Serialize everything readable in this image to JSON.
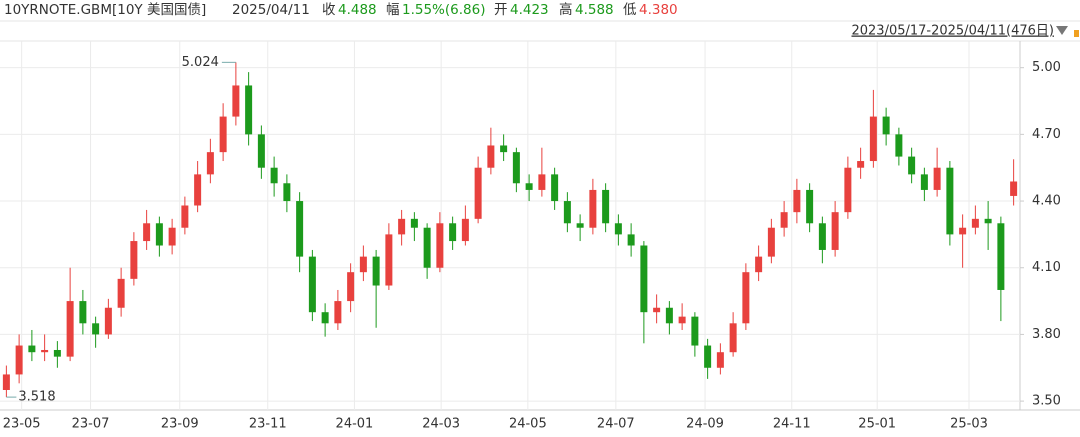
{
  "header": {
    "symbol": "10YRNOTE.GBM[10Y 美国国债]",
    "date": "2025/04/11",
    "close_label": "收",
    "close": "4.488",
    "change_label": "幅",
    "change": "1.55%(6.86)",
    "open_label": "开",
    "open": "4.423",
    "high_label": "高",
    "high": "4.588",
    "low_label": "低",
    "low": "4.380",
    "range": "2023/05/17-2025/04/11(476日)"
  },
  "chart_data": {
    "type": "candlestick",
    "up_color": "#e8413e",
    "down_color": "#1c9a1c",
    "grid": true,
    "ylim": [
      3.46,
      5.12
    ],
    "yticks": [
      {
        "value": 3.5,
        "label": "3.50"
      },
      {
        "value": 3.8,
        "label": "3.80"
      },
      {
        "value": 4.1,
        "label": "4.10"
      },
      {
        "value": 4.4,
        "label": "4.40"
      },
      {
        "value": 4.7,
        "label": "4.70"
      },
      {
        "value": 5.0,
        "label": "5.00"
      }
    ],
    "xlim": [
      0,
      80
    ],
    "xticks": [
      {
        "value": 1.7,
        "label": "23-05"
      },
      {
        "value": 7.1,
        "label": "23-07"
      },
      {
        "value": 14.1,
        "label": "23-09"
      },
      {
        "value": 21.0,
        "label": "23-11"
      },
      {
        "value": 27.8,
        "label": "24-01"
      },
      {
        "value": 34.6,
        "label": "24-03"
      },
      {
        "value": 41.4,
        "label": "24-05"
      },
      {
        "value": 48.3,
        "label": "24-07"
      },
      {
        "value": 55.3,
        "label": "24-09"
      },
      {
        "value": 62.1,
        "label": "24-11"
      },
      {
        "value": 68.8,
        "label": "25-01"
      },
      {
        "value": 76.0,
        "label": "25-03"
      }
    ],
    "annotations": [
      {
        "value": 5.024,
        "label": "5.024",
        "index": 18
      },
      {
        "value": 3.518,
        "label": "3.518",
        "index": 0
      }
    ],
    "ohlc": [
      [
        3.55,
        3.66,
        3.518,
        3.62
      ],
      [
        3.62,
        3.8,
        3.58,
        3.75
      ],
      [
        3.75,
        3.82,
        3.68,
        3.72
      ],
      [
        3.72,
        3.8,
        3.68,
        3.73
      ],
      [
        3.73,
        3.77,
        3.65,
        3.7
      ],
      [
        3.7,
        4.1,
        3.68,
        3.95
      ],
      [
        3.95,
        4.0,
        3.8,
        3.85
      ],
      [
        3.85,
        3.88,
        3.74,
        3.8
      ],
      [
        3.8,
        3.96,
        3.78,
        3.92
      ],
      [
        3.92,
        4.1,
        3.88,
        4.05
      ],
      [
        4.05,
        4.26,
        4.02,
        4.22
      ],
      [
        4.22,
        4.36,
        4.18,
        4.3
      ],
      [
        4.3,
        4.33,
        4.15,
        4.2
      ],
      [
        4.2,
        4.32,
        4.16,
        4.28
      ],
      [
        4.28,
        4.42,
        4.25,
        4.38
      ],
      [
        4.38,
        4.58,
        4.35,
        4.52
      ],
      [
        4.52,
        4.68,
        4.48,
        4.62
      ],
      [
        4.62,
        4.84,
        4.58,
        4.78
      ],
      [
        4.78,
        5.024,
        4.74,
        4.92
      ],
      [
        4.92,
        4.98,
        4.65,
        4.7
      ],
      [
        4.7,
        4.74,
        4.5,
        4.55
      ],
      [
        4.55,
        4.6,
        4.42,
        4.48
      ],
      [
        4.48,
        4.52,
        4.35,
        4.4
      ],
      [
        4.4,
        4.44,
        4.08,
        4.15
      ],
      [
        4.15,
        4.18,
        3.86,
        3.9
      ],
      [
        3.9,
        3.94,
        3.79,
        3.85
      ],
      [
        3.85,
        4.0,
        3.82,
        3.95
      ],
      [
        3.95,
        4.12,
        3.9,
        4.08
      ],
      [
        4.08,
        4.2,
        4.04,
        4.15
      ],
      [
        4.15,
        4.18,
        3.83,
        4.02
      ],
      [
        4.02,
        4.3,
        4.0,
        4.25
      ],
      [
        4.25,
        4.36,
        4.2,
        4.32
      ],
      [
        4.32,
        4.35,
        4.22,
        4.28
      ],
      [
        4.28,
        4.3,
        4.05,
        4.1
      ],
      [
        4.1,
        4.35,
        4.08,
        4.3
      ],
      [
        4.3,
        4.33,
        4.18,
        4.22
      ],
      [
        4.22,
        4.38,
        4.2,
        4.32
      ],
      [
        4.32,
        4.6,
        4.3,
        4.55
      ],
      [
        4.55,
        4.73,
        4.52,
        4.65
      ],
      [
        4.65,
        4.7,
        4.58,
        4.62
      ],
      [
        4.62,
        4.64,
        4.44,
        4.48
      ],
      [
        4.48,
        4.52,
        4.4,
        4.45
      ],
      [
        4.45,
        4.64,
        4.42,
        4.52
      ],
      [
        4.52,
        4.55,
        4.36,
        4.4
      ],
      [
        4.4,
        4.44,
        4.26,
        4.3
      ],
      [
        4.3,
        4.34,
        4.22,
        4.28
      ],
      [
        4.28,
        4.5,
        4.25,
        4.45
      ],
      [
        4.45,
        4.48,
        4.26,
        4.3
      ],
      [
        4.3,
        4.34,
        4.2,
        4.25
      ],
      [
        4.25,
        4.3,
        4.15,
        4.2
      ],
      [
        4.2,
        4.22,
        3.76,
        3.9
      ],
      [
        3.9,
        3.98,
        3.85,
        3.92
      ],
      [
        3.92,
        3.95,
        3.8,
        3.85
      ],
      [
        3.85,
        3.94,
        3.82,
        3.88
      ],
      [
        3.88,
        3.9,
        3.7,
        3.75
      ],
      [
        3.75,
        3.78,
        3.6,
        3.65
      ],
      [
        3.65,
        3.76,
        3.62,
        3.72
      ],
      [
        3.72,
        3.9,
        3.7,
        3.85
      ],
      [
        3.85,
        4.12,
        3.82,
        4.08
      ],
      [
        4.08,
        4.2,
        4.04,
        4.15
      ],
      [
        4.15,
        4.32,
        4.12,
        4.28
      ],
      [
        4.28,
        4.4,
        4.24,
        4.35
      ],
      [
        4.35,
        4.5,
        4.3,
        4.45
      ],
      [
        4.45,
        4.48,
        4.26,
        4.3
      ],
      [
        4.3,
        4.33,
        4.12,
        4.18
      ],
      [
        4.18,
        4.4,
        4.15,
        4.35
      ],
      [
        4.35,
        4.6,
        4.32,
        4.55
      ],
      [
        4.55,
        4.64,
        4.5,
        4.58
      ],
      [
        4.58,
        4.9,
        4.55,
        4.78
      ],
      [
        4.78,
        4.82,
        4.65,
        4.7
      ],
      [
        4.7,
        4.73,
        4.56,
        4.6
      ],
      [
        4.6,
        4.64,
        4.48,
        4.52
      ],
      [
        4.52,
        4.55,
        4.4,
        4.45
      ],
      [
        4.45,
        4.64,
        4.42,
        4.55
      ],
      [
        4.55,
        4.58,
        4.2,
        4.25
      ],
      [
        4.25,
        4.34,
        4.1,
        4.28
      ],
      [
        4.28,
        4.38,
        4.25,
        4.32
      ],
      [
        4.32,
        4.4,
        4.18,
        4.3
      ],
      [
        4.3,
        4.33,
        3.86,
        4.0
      ],
      [
        4.423,
        4.588,
        4.38,
        4.488
      ]
    ]
  }
}
